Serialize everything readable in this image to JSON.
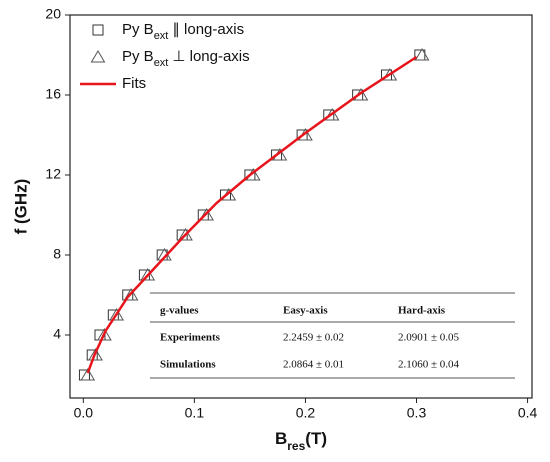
{
  "chart_data": {
    "type": "scatter",
    "xlabel": [
      "B",
      "res",
      "(T)"
    ],
    "ylabel": "f (GHz)",
    "xlim": [
      -0.012,
      0.404
    ],
    "ylim": [
      0.85,
      20
    ],
    "xticks": [
      {
        "value": 0,
        "label": "0.0"
      },
      0.1,
      0.2,
      0.3,
      0.4
    ],
    "yticks": [
      4,
      8,
      12,
      16,
      20
    ],
    "legend": "upper left",
    "series": [
      {
        "name": [
          "Py B",
          "ext",
          "∥ long-axis"
        ],
        "type": "scatter",
        "marker": "square",
        "color": "#333333",
        "x": [
          0.001,
          0.008,
          0.015,
          0.027,
          0.04,
          0.055,
          0.071,
          0.089,
          0.108,
          0.128,
          0.15,
          0.174,
          0.197,
          0.221,
          0.247,
          0.273,
          0.303
        ],
        "values": [
          2,
          3,
          4,
          5,
          6,
          7,
          8,
          9,
          10,
          11,
          12,
          13,
          14,
          15,
          16,
          17,
          18
        ]
      },
      {
        "name": [
          "Py B",
          "ext",
          "⊥ long-axis"
        ],
        "type": "scatter",
        "marker": "triangle",
        "color": "#555555",
        "x": [
          0.004,
          0.011,
          0.019,
          0.03,
          0.043,
          0.058,
          0.073,
          0.092,
          0.111,
          0.131,
          0.153,
          0.177,
          0.2,
          0.224,
          0.25,
          0.276,
          0.305
        ],
        "values": [
          2,
          3,
          4,
          5,
          6,
          7,
          8,
          9,
          10,
          11,
          12,
          13,
          14,
          15,
          16,
          17,
          18
        ]
      },
      {
        "name": [
          "Fits"
        ],
        "type": "line",
        "color": "#e8141c",
        "x": [
          0.004,
          0.01,
          0.02,
          0.04,
          0.06,
          0.09,
          0.12,
          0.15,
          0.2,
          0.25,
          0.3
        ],
        "values": [
          2.1,
          3.0,
          4.2,
          5.9,
          7.1,
          8.9,
          10.6,
          12.0,
          14.1,
          16.1,
          17.9
        ]
      }
    ],
    "table": {
      "header": [
        "g-values",
        "Easy-axis",
        "Hard-axis"
      ],
      "rows": [
        [
          "Experiments",
          "2.2459 ± 0.02",
          "2.0901 ± 0.05"
        ],
        [
          "Simulations",
          "2.0864 ± 0.01",
          "2.1060 ± 0.04"
        ]
      ]
    }
  }
}
